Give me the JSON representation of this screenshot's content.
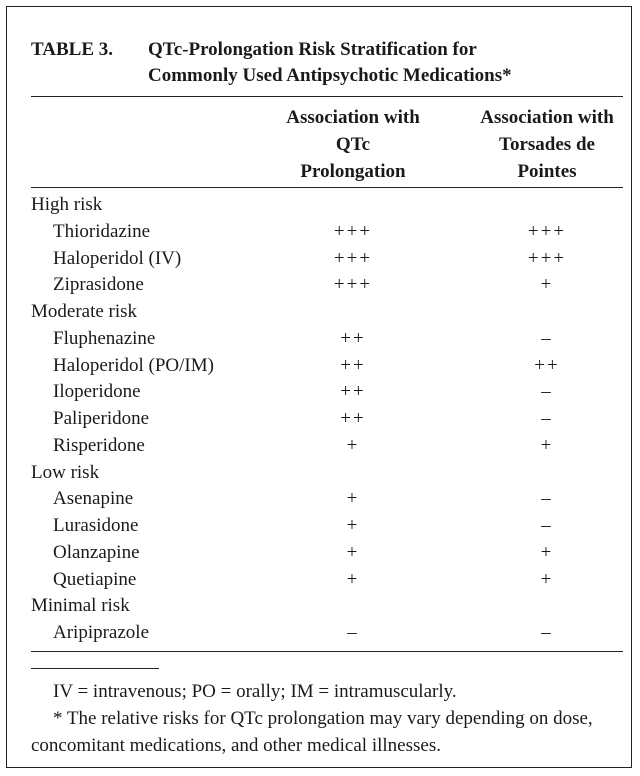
{
  "table": {
    "label": "TABLE 3.",
    "title_line1": "QTc-Prolongation Risk Stratification for",
    "title_line2": "Commonly Used Antipsychotic Medications*",
    "col_a": [
      "Association with",
      "QTc",
      "Prolongation"
    ],
    "col_b": [
      "Association with",
      "Torsades de",
      "Pointes"
    ],
    "rows": [
      {
        "type": "group",
        "label": "High risk"
      },
      {
        "type": "drug",
        "label": "Thioridazine",
        "qtc": "+++",
        "tdp": "+++"
      },
      {
        "type": "drug",
        "label": "Haloperidol (IV)",
        "qtc": "+++",
        "tdp": "+++"
      },
      {
        "type": "drug",
        "label": "Ziprasidone",
        "qtc": "+++",
        "tdp": "+"
      },
      {
        "type": "group",
        "label": "Moderate risk"
      },
      {
        "type": "drug",
        "label": "Fluphenazine",
        "qtc": "++",
        "tdp": "–"
      },
      {
        "type": "drug",
        "label": "Haloperidol (PO/IM)",
        "qtc": "++",
        "tdp": "++"
      },
      {
        "type": "drug",
        "label": "Iloperidone",
        "qtc": "++",
        "tdp": "–"
      },
      {
        "type": "drug",
        "label": "Paliperidone",
        "qtc": "++",
        "tdp": "–"
      },
      {
        "type": "drug",
        "label": "Risperidone",
        "qtc": "+",
        "tdp": "+"
      },
      {
        "type": "group",
        "label": "Low risk"
      },
      {
        "type": "drug",
        "label": "Asenapine",
        "qtc": "+",
        "tdp": "–"
      },
      {
        "type": "drug",
        "label": "Lurasidone",
        "qtc": "+",
        "tdp": "–"
      },
      {
        "type": "drug",
        "label": "Olanzapine",
        "qtc": "+",
        "tdp": "+"
      },
      {
        "type": "drug",
        "label": "Quetiapine",
        "qtc": "+",
        "tdp": "+"
      },
      {
        "type": "group",
        "label": "Minimal risk"
      },
      {
        "type": "drug",
        "label": "Aripiprazole",
        "qtc": "–",
        "tdp": "–"
      }
    ],
    "footnote_abbrev": "IV = intravenous; PO = orally; IM = intramuscularly.",
    "footnote_star": "* The relative risks for QTc prolongation may vary depending on dose, concomitant medications, and other medical illnesses."
  }
}
